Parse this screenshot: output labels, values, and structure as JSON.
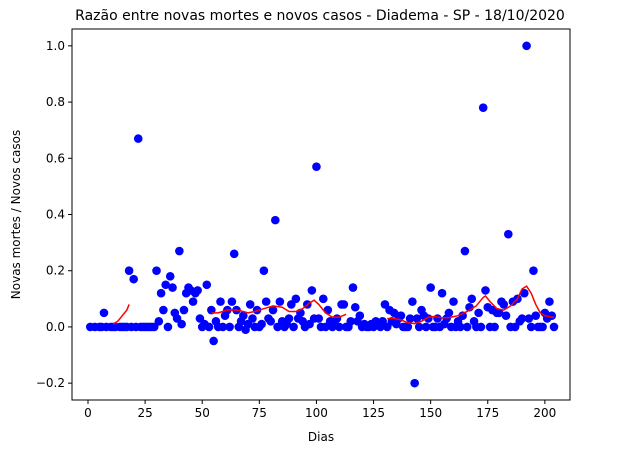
{
  "chart_data": {
    "type": "scatter",
    "title": "Razão entre novas mortes e novos casos - Diadema - SP - 18/10/2020",
    "xlabel": "Dias",
    "ylabel": "Novas mortes / Novos casos",
    "xlim": [
      -7,
      211
    ],
    "ylim": [
      -0.26,
      1.06
    ],
    "xticks": [
      0,
      25,
      50,
      75,
      100,
      125,
      150,
      175,
      200
    ],
    "yticks": [
      -0.2,
      0.0,
      0.2,
      0.4,
      0.6,
      0.8,
      1.0
    ],
    "ytick_labels": [
      "−0.2",
      "0.0",
      "0.2",
      "0.4",
      "0.6",
      "0.8",
      "1.0"
    ],
    "grid": false,
    "series": [
      {
        "kind": "scatter",
        "color": "#0000ff",
        "points": [
          [
            1,
            0
          ],
          [
            3,
            0
          ],
          [
            5,
            0
          ],
          [
            6,
            0
          ],
          [
            7,
            0.05
          ],
          [
            8,
            0
          ],
          [
            10,
            0
          ],
          [
            11,
            0
          ],
          [
            12,
            0
          ],
          [
            14,
            0
          ],
          [
            15,
            0
          ],
          [
            16,
            0
          ],
          [
            17,
            0
          ],
          [
            18,
            0.2
          ],
          [
            19,
            0
          ],
          [
            20,
            0.17
          ],
          [
            21,
            0
          ],
          [
            22,
            0.67
          ],
          [
            23,
            0
          ],
          [
            24,
            0
          ],
          [
            25,
            0
          ],
          [
            26,
            0
          ],
          [
            27,
            0
          ],
          [
            28,
            0
          ],
          [
            29,
            0
          ],
          [
            30,
            0.2
          ],
          [
            31,
            0.02
          ],
          [
            32,
            0.12
          ],
          [
            33,
            0.06
          ],
          [
            34,
            0.15
          ],
          [
            35,
            0
          ],
          [
            36,
            0.18
          ],
          [
            37,
            0.14
          ],
          [
            38,
            0.05
          ],
          [
            39,
            0.03
          ],
          [
            40,
            0.27
          ],
          [
            41,
            0.01
          ],
          [
            42,
            0.06
          ],
          [
            43,
            0.12
          ],
          [
            44,
            0.14
          ],
          [
            45,
            0.13
          ],
          [
            46,
            0.09
          ],
          [
            47,
            0.12
          ],
          [
            48,
            0.13
          ],
          [
            49,
            0.03
          ],
          [
            50,
            0
          ],
          [
            51,
            0.01
          ],
          [
            52,
            0.15
          ],
          [
            53,
            0
          ],
          [
            54,
            0.06
          ],
          [
            55,
            -0.05
          ],
          [
            56,
            0.02
          ],
          [
            57,
            0
          ],
          [
            58,
            0.09
          ],
          [
            59,
            0
          ],
          [
            60,
            0.04
          ],
          [
            61,
            0.06
          ],
          [
            62,
            0
          ],
          [
            63,
            0.09
          ],
          [
            64,
            0.26
          ],
          [
            65,
            0.06
          ],
          [
            66,
            0
          ],
          [
            67,
            0.02
          ],
          [
            68,
            0.04
          ],
          [
            69,
            -0.01
          ],
          [
            70,
            0.01
          ],
          [
            71,
            0.08
          ],
          [
            72,
            0.03
          ],
          [
            73,
            0
          ],
          [
            74,
            0.06
          ],
          [
            75,
            0
          ],
          [
            76,
            0.01
          ],
          [
            77,
            0.2
          ],
          [
            78,
            0.09
          ],
          [
            79,
            0.03
          ],
          [
            80,
            0.02
          ],
          [
            81,
            0.06
          ],
          [
            82,
            0.38
          ],
          [
            83,
            0
          ],
          [
            84,
            0.09
          ],
          [
            85,
            0.02
          ],
          [
            86,
            0
          ],
          [
            87,
            0.01
          ],
          [
            88,
            0.03
          ],
          [
            89,
            0.08
          ],
          [
            90,
            0
          ],
          [
            91,
            0.1
          ],
          [
            92,
            0.03
          ],
          [
            93,
            0.05
          ],
          [
            94,
            0.02
          ],
          [
            95,
            0
          ],
          [
            96,
            0.08
          ],
          [
            97,
            0.01
          ],
          [
            98,
            0.13
          ],
          [
            99,
            0.03
          ],
          [
            100,
            0.57
          ],
          [
            101,
            0.03
          ],
          [
            102,
            0
          ],
          [
            103,
            0.1
          ],
          [
            104,
            0
          ],
          [
            105,
            0.06
          ],
          [
            106,
            0.02
          ],
          [
            107,
            0
          ],
          [
            108,
            0.01
          ],
          [
            109,
            0.03
          ],
          [
            110,
            0
          ],
          [
            111,
            0.08
          ],
          [
            112,
            0.08
          ],
          [
            113,
            0
          ],
          [
            114,
            0
          ],
          [
            115,
            0.02
          ],
          [
            116,
            0.14
          ],
          [
            117,
            0.07
          ],
          [
            118,
            0.02
          ],
          [
            119,
            0.04
          ],
          [
            120,
            0
          ],
          [
            121,
            0.01
          ],
          [
            122,
            0
          ],
          [
            123,
            0
          ],
          [
            124,
            0.01
          ],
          [
            125,
            0
          ],
          [
            126,
            0.02
          ],
          [
            127,
            0.01
          ],
          [
            128,
            0
          ],
          [
            129,
            0.02
          ],
          [
            130,
            0.08
          ],
          [
            131,
            0
          ],
          [
            132,
            0.06
          ],
          [
            133,
            0.02
          ],
          [
            134,
            0.05
          ],
          [
            135,
            0.01
          ],
          [
            136,
            0.03
          ],
          [
            137,
            0.04
          ],
          [
            138,
            0
          ],
          [
            139,
            0
          ],
          [
            140,
            0
          ],
          [
            141,
            0.03
          ],
          [
            142,
            0.09
          ],
          [
            143,
            -0.2
          ],
          [
            144,
            0.03
          ],
          [
            145,
            0
          ],
          [
            146,
            0.06
          ],
          [
            147,
            0.04
          ],
          [
            148,
            0
          ],
          [
            149,
            0.03
          ],
          [
            150,
            0.14
          ],
          [
            151,
            0
          ],
          [
            152,
            0
          ],
          [
            153,
            0.03
          ],
          [
            154,
            0
          ],
          [
            155,
            0.12
          ],
          [
            156,
            0.01
          ],
          [
            157,
            0.03
          ],
          [
            158,
            0.05
          ],
          [
            159,
            0
          ],
          [
            160,
            0.09
          ],
          [
            161,
            0
          ],
          [
            162,
            0.02
          ],
          [
            163,
            0
          ],
          [
            164,
            0.04
          ],
          [
            165,
            0.27
          ],
          [
            166,
            0
          ],
          [
            167,
            0.07
          ],
          [
            168,
            0.1
          ],
          [
            169,
            0.02
          ],
          [
            170,
            0
          ],
          [
            171,
            0.05
          ],
          [
            172,
            0
          ],
          [
            173,
            0.78
          ],
          [
            174,
            0.13
          ],
          [
            175,
            0.07
          ],
          [
            176,
            0
          ],
          [
            177,
            0.06
          ],
          [
            178,
            0
          ],
          [
            179,
            0.05
          ],
          [
            180,
            0.05
          ],
          [
            181,
            0.09
          ],
          [
            182,
            0.08
          ],
          [
            183,
            0.04
          ],
          [
            184,
            0.33
          ],
          [
            185,
            0
          ],
          [
            186,
            0.09
          ],
          [
            187,
            0
          ],
          [
            188,
            0.1
          ],
          [
            189,
            0.02
          ],
          [
            190,
            0.03
          ],
          [
            191,
            0.12
          ],
          [
            192,
            1.0
          ],
          [
            193,
            0.03
          ],
          [
            194,
            0
          ],
          [
            195,
            0.2
          ],
          [
            196,
            0.04
          ],
          [
            197,
            0
          ],
          [
            198,
            0
          ],
          [
            199,
            0
          ],
          [
            200,
            0.05
          ],
          [
            201,
            0.03
          ],
          [
            202,
            0.09
          ],
          [
            203,
            0.04
          ],
          [
            204,
            0
          ]
        ]
      },
      {
        "kind": "line",
        "color": "#ff0000",
        "segments": [
          [
            [
              11,
              0.01
            ],
            [
              13,
              0.02
            ],
            [
              15,
              0.04
            ],
            [
              17,
              0.06
            ],
            [
              18,
              0.08
            ]
          ],
          [
            [
              54,
              0.05
            ],
            [
              57,
              0.05
            ],
            [
              61,
              0.06
            ],
            [
              65,
              0.06
            ],
            [
              68,
              0.055
            ],
            [
              70,
              0.05
            ],
            [
              73,
              0.055
            ],
            [
              77,
              0.065
            ],
            [
              81,
              0.075
            ],
            [
              85,
              0.07
            ],
            [
              88,
              0.055
            ],
            [
              91,
              0.055
            ],
            [
              94,
              0.065
            ],
            [
              97,
              0.085
            ],
            [
              99,
              0.095
            ],
            [
              101,
              0.08
            ],
            [
              104,
              0.05
            ],
            [
              107,
              0.035
            ],
            [
              110,
              0.035
            ],
            [
              113,
              0.045
            ]
          ],
          [
            [
              131,
              0.03
            ],
            [
              134,
              0.03
            ],
            [
              137,
              0.025
            ],
            [
              140,
              0.015
            ],
            [
              143,
              0.012
            ],
            [
              146,
              0.02
            ],
            [
              149,
              0.035
            ],
            [
              152,
              0.037
            ],
            [
              155,
              0.032
            ],
            [
              158,
              0.033
            ],
            [
              162,
              0.04
            ],
            [
              166,
              0.055
            ],
            [
              170,
              0.075
            ],
            [
              173,
              0.105
            ],
            [
              174,
              0.11
            ],
            [
              176,
              0.09
            ],
            [
              179,
              0.065
            ],
            [
              182,
              0.06
            ],
            [
              185,
              0.075
            ],
            [
              188,
              0.1
            ],
            [
              190,
              0.135
            ],
            [
              192,
              0.145
            ],
            [
              194,
              0.12
            ],
            [
              196,
              0.08
            ],
            [
              198,
              0.05
            ],
            [
              200,
              0.04
            ],
            [
              203,
              0.035
            ],
            [
              204,
              0.035
            ]
          ]
        ]
      }
    ]
  }
}
